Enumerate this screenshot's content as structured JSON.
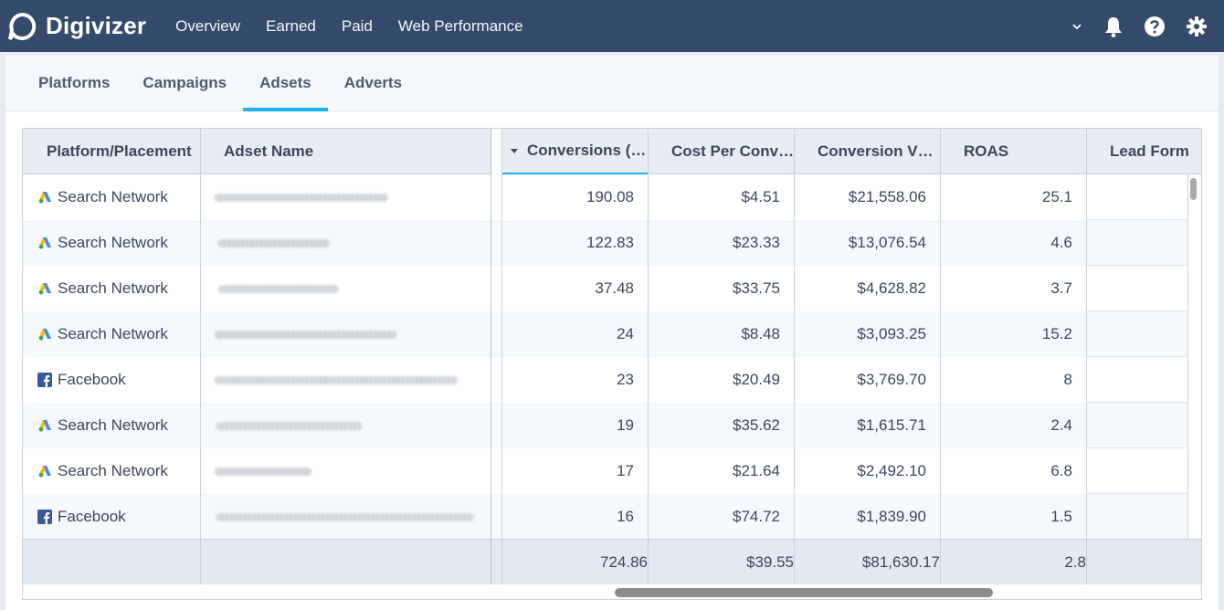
{
  "app": {
    "brand": "Digivizer",
    "nav": [
      "Overview",
      "Earned",
      "Paid",
      "Web Performance"
    ],
    "icons": [
      "chevron-down-icon",
      "bell-icon",
      "help-icon",
      "gear-icon"
    ]
  },
  "subtabs": [
    "Platforms",
    "Campaigns",
    "Adsets",
    "Adverts"
  ],
  "active_subtab": "Adsets",
  "table": {
    "columns": [
      "Platform/Placement",
      "Adset Name",
      "Conversions (…",
      "Cost Per Conv…",
      "Conversion V…",
      "ROAS",
      "Lead Form"
    ],
    "sorted_column": "Conversions (…",
    "rows": [
      {
        "platform": "Search Network",
        "icon": "google-ads-icon",
        "conversions": "190.08",
        "cost": "$4.51",
        "value": "$21,558.06",
        "roas": "25.1"
      },
      {
        "platform": "Search Network",
        "icon": "google-ads-icon",
        "conversions": "122.83",
        "cost": "$23.33",
        "value": "$13,076.54",
        "roas": "4.6"
      },
      {
        "platform": "Search Network",
        "icon": "google-ads-icon",
        "conversions": "37.48",
        "cost": "$33.75",
        "value": "$4,628.82",
        "roas": "3.7"
      },
      {
        "platform": "Search Network",
        "icon": "google-ads-icon",
        "conversions": "24",
        "cost": "$8.48",
        "value": "$3,093.25",
        "roas": "15.2"
      },
      {
        "platform": "Facebook",
        "icon": "facebook-icon",
        "conversions": "23",
        "cost": "$20.49",
        "value": "$3,769.70",
        "roas": "8"
      },
      {
        "platform": "Search Network",
        "icon": "google-ads-icon",
        "conversions": "19",
        "cost": "$35.62",
        "value": "$1,615.71",
        "roas": "2.4"
      },
      {
        "platform": "Search Network",
        "icon": "google-ads-icon",
        "conversions": "17",
        "cost": "$21.64",
        "value": "$2,492.10",
        "roas": "6.8"
      },
      {
        "platform": "Facebook",
        "icon": "facebook-icon",
        "conversions": "16",
        "cost": "$74.72",
        "value": "$1,839.90",
        "roas": "1.5"
      }
    ],
    "totals": {
      "conversions": "724.86",
      "cost": "$39.55",
      "value": "$81,630.17",
      "roas": "2.8"
    }
  },
  "colors": {
    "topbar": "#354b6b",
    "accent": "#1db1f2",
    "row_alt": "#f5f8fc"
  }
}
